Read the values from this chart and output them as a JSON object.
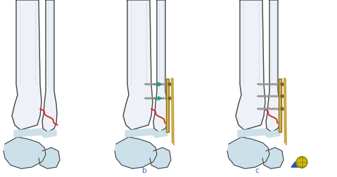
{
  "bg_color": "#ffffff",
  "bone_color_light": "#eef2f8",
  "bone_color_mid": "#d8e4f0",
  "bone_outline": "#444444",
  "fracture_color": "#cc2222",
  "plate_color": "#c8a84a",
  "plate_dark": "#7a6420",
  "screw_color": "#aaaaaa",
  "arrow_color": "#22997a",
  "cartilage_color": "#cce0ea",
  "cartilage_dark": "#a8c8d8",
  "globe_yellow": "#e8cc22",
  "globe_dark": "#887700",
  "triangle_blue": "#2255aa",
  "label_color": "#3366cc",
  "lw_bone": 1.0
}
